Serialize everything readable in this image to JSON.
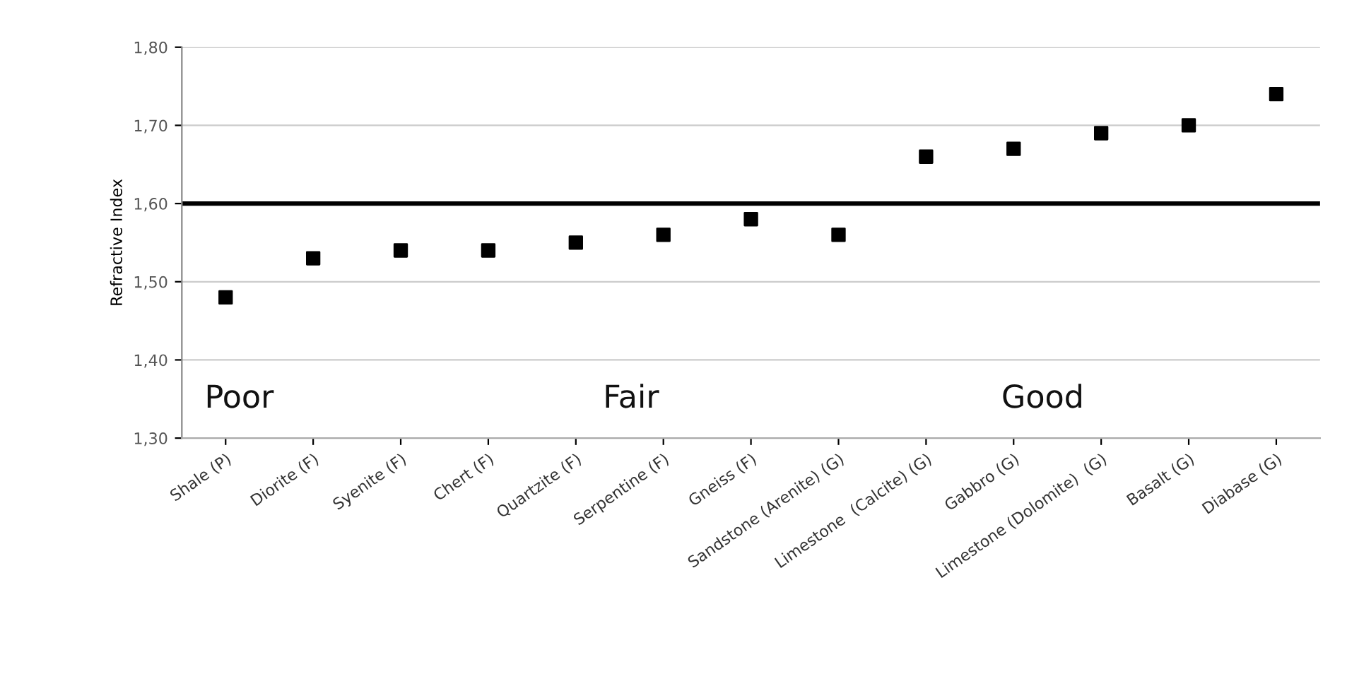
{
  "chart_data": {
    "type": "scatter",
    "ylabel": "Refractive Index",
    "categories": [
      "Shale (P)",
      "Diorite (F)",
      "Syenite (F)",
      "Chert (F)",
      "Quartzite (F)",
      "Serpentine (F)",
      "Gneiss (F)",
      "Sandstone (Arenite) (G)",
      "Limestone  (Calcite) (G)",
      "Gabbro (G)",
      "Limestone (Dolomite)  (G)",
      "Basalt (G)",
      "Diabase (G)"
    ],
    "series": [
      {
        "color": "#000000",
        "values": [
          1.48,
          1.53,
          1.54,
          1.54,
          1.55,
          1.56,
          1.58,
          1.56,
          1.66,
          1.67,
          1.69,
          1.7,
          1.74
        ]
      }
    ],
    "ylim": [
      1.3,
      1.8
    ],
    "yticks": [
      {
        "value": 1.3,
        "label": "1,30"
      },
      {
        "value": 1.4,
        "label": "1,40"
      },
      {
        "value": 1.5,
        "label": "1,50"
      },
      {
        "value": 1.6,
        "label": "1,60"
      },
      {
        "value": 1.7,
        "label": "1,70"
      },
      {
        "value": 1.8,
        "label": "1,80"
      }
    ],
    "ref_lines": [
      {
        "axis": "y",
        "value": 1.6,
        "color": "#000000"
      }
    ],
    "annotations": [
      "Poor",
      "Fair",
      "Good"
    ],
    "grid": "y",
    "marker": "square",
    "legend": false
  }
}
